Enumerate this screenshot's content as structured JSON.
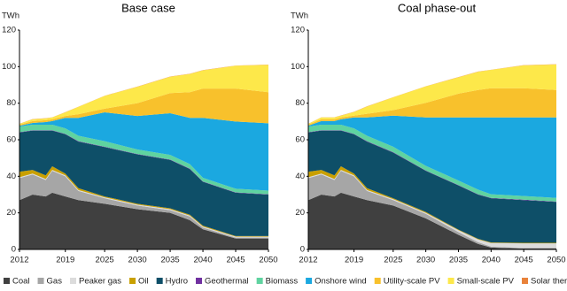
{
  "chart_data": [
    {
      "type": "area",
      "title": "Base case",
      "y_label": "TWh",
      "x": [
        2012,
        2014,
        2016,
        2017,
        2019,
        2021,
        2025,
        2030,
        2035,
        2038,
        2040,
        2045,
        2050
      ],
      "xlim": [
        2012,
        2050
      ],
      "xticks": [
        2012,
        2019,
        2025,
        2030,
        2035,
        2040,
        2045,
        2050
      ],
      "ylim": [
        0,
        120
      ],
      "yticks": [
        0,
        20,
        40,
        60,
        80,
        100,
        120
      ],
      "series": [
        {
          "name": "Coal",
          "color": "#404040",
          "values": [
            27,
            30,
            29,
            31,
            29,
            27,
            25,
            22,
            20,
            16,
            11,
            6,
            6
          ]
        },
        {
          "name": "Gas",
          "color": "#a6a6a6",
          "values": [
            12,
            11,
            9,
            12,
            11,
            5,
            3,
            2,
            1.5,
            2,
            1,
            0.5,
            0.5
          ]
        },
        {
          "name": "Peaker gas",
          "color": "#dcdcdc",
          "values": [
            0.5,
            0.5,
            0.5,
            0.5,
            0.5,
            0.5,
            0.5,
            0.5,
            0.5,
            0.5,
            0.5,
            0.5,
            0.5
          ]
        },
        {
          "name": "Oil",
          "color": "#c9a000",
          "values": [
            3,
            2,
            2,
            2,
            1,
            1,
            0.5,
            0.5,
            0.5,
            0.5,
            0.5,
            0.3,
            0.3
          ]
        },
        {
          "name": "Hydro",
          "color": "#0e4f68",
          "values": [
            21.5,
            21.5,
            24.5,
            19.5,
            21.5,
            25.5,
            27,
            27,
            26.5,
            25,
            24,
            23.7,
            22.7
          ]
        },
        {
          "name": "Geothermal",
          "color": "#7030a0",
          "values": [
            0.2,
            0.2,
            0.2,
            0.2,
            0.2,
            0.2,
            0.2,
            0.2,
            0.2,
            0.2,
            0.2,
            0.2,
            0.2
          ]
        },
        {
          "name": "Biomass",
          "color": "#5fd3a0",
          "values": [
            3,
            3,
            3,
            3,
            3,
            3,
            3,
            2.5,
            2.5,
            2.5,
            2,
            2,
            2
          ]
        },
        {
          "name": "Onshore wind",
          "color": "#1ba8e0",
          "values": [
            0.5,
            1,
            1.5,
            2,
            5.8,
            9.8,
            15.8,
            18.3,
            22.8,
            25.3,
            32.8,
            36.8,
            36.8
          ]
        },
        {
          "name": "Utility-scale PV",
          "color": "#f8c12c",
          "values": [
            0.5,
            1,
            1,
            1,
            1,
            2,
            2,
            7,
            11,
            14,
            16,
            18,
            17
          ]
        },
        {
          "name": "Small-scale PV",
          "color": "#fde84a",
          "values": [
            0.5,
            1,
            1,
            1,
            2,
            4,
            7,
            9,
            9,
            10,
            10,
            12.5,
            15
          ]
        },
        {
          "name": "Solar thermal",
          "color": "#e9823a",
          "values": [
            0.1,
            0.1,
            0.1,
            0.1,
            0.1,
            0.1,
            0.1,
            0.1,
            0.1,
            0.1,
            0.1,
            0.1,
            0.1
          ]
        }
      ]
    },
    {
      "type": "area",
      "title": "Coal phase-out",
      "y_label": "TWh",
      "x": [
        2012,
        2014,
        2016,
        2017,
        2019,
        2021,
        2025,
        2030,
        2035,
        2038,
        2040,
        2045,
        2050
      ],
      "xlim": [
        2012,
        2050
      ],
      "xticks": [
        2012,
        2019,
        2025,
        2030,
        2035,
        2040,
        2045,
        2050
      ],
      "ylim": [
        0,
        120
      ],
      "yticks": [
        0,
        20,
        40,
        60,
        80,
        100,
        120
      ],
      "series": [
        {
          "name": "Coal",
          "color": "#404040",
          "values": [
            27,
            30,
            29,
            31,
            29,
            27,
            24,
            17,
            8,
            3,
            1,
            0.5,
            0.5
          ]
        },
        {
          "name": "Gas",
          "color": "#a6a6a6",
          "values": [
            12,
            11,
            9,
            12,
            11,
            5,
            3,
            2.5,
            1.5,
            1,
            0.5,
            0.3,
            0.3
          ]
        },
        {
          "name": "Peaker gas",
          "color": "#dcdcdc",
          "values": [
            0.5,
            0.5,
            0.5,
            0.5,
            0.5,
            0.5,
            0.5,
            0.5,
            1,
            1.5,
            2,
            2.5,
            2.5
          ]
        },
        {
          "name": "Oil",
          "color": "#c9a000",
          "values": [
            3,
            2,
            2,
            2,
            1,
            1,
            0.5,
            0.5,
            0.3,
            0.3,
            0.3,
            0.3,
            0.3
          ]
        },
        {
          "name": "Hydro",
          "color": "#0e4f68",
          "values": [
            21.5,
            21.5,
            24.5,
            19.5,
            21.5,
            25.5,
            25,
            22.5,
            24.2,
            24.2,
            24.2,
            23.4,
            22.4
          ]
        },
        {
          "name": "Geothermal",
          "color": "#7030a0",
          "values": [
            0.2,
            0.2,
            0.2,
            0.2,
            0.2,
            0.2,
            0.2,
            0.2,
            0.2,
            0.2,
            0.2,
            0.2,
            0.2
          ]
        },
        {
          "name": "Biomass",
          "color": "#5fd3a0",
          "values": [
            3,
            3,
            3,
            3,
            3,
            3,
            3,
            2.5,
            2.5,
            2.5,
            2,
            2,
            2
          ]
        },
        {
          "name": "Onshore wind",
          "color": "#1ba8e0",
          "values": [
            0.5,
            2,
            2,
            3,
            6,
            10,
            17,
            26.5,
            34.5,
            39.5,
            42,
            43,
            44
          ]
        },
        {
          "name": "Utility-scale PV",
          "color": "#f8c12c",
          "values": [
            0.5,
            1,
            1,
            1,
            1,
            2,
            3,
            8,
            13,
            15,
            16,
            16,
            15
          ]
        },
        {
          "name": "Small-scale PV",
          "color": "#fde84a",
          "values": [
            0.5,
            1,
            1,
            1,
            2,
            4,
            7,
            9,
            9,
            10,
            10,
            12.5,
            14
          ]
        },
        {
          "name": "Solar thermal",
          "color": "#e9823a",
          "values": [
            0.1,
            0.1,
            0.1,
            0.1,
            0.1,
            0.1,
            0.1,
            0.1,
            0.1,
            0.1,
            0.1,
            0.1,
            0.1
          ]
        }
      ]
    }
  ]
}
